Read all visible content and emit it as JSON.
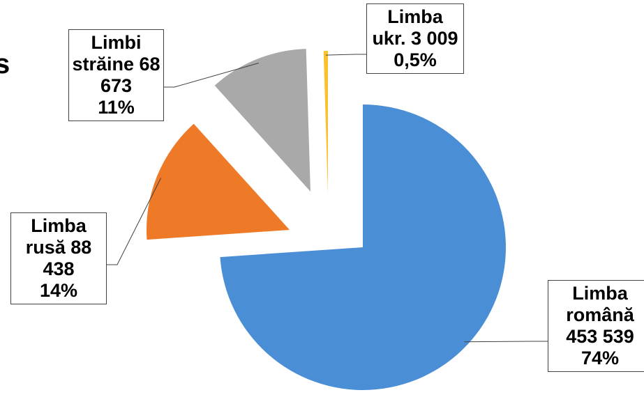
{
  "chart_data": {
    "type": "pie",
    "title": "s",
    "categories": [
      "Limba română",
      "Limba rusă",
      "Limbi străine",
      "Limba ukr."
    ],
    "values": [
      453539,
      88438,
      68673,
      3009
    ],
    "value_labels": [
      "453 539",
      "88 438",
      "68 673",
      "3 009"
    ],
    "percents": [
      74,
      14,
      11,
      0.5
    ],
    "percent_labels": [
      "74%",
      "14%",
      "11%",
      "0,5%"
    ],
    "colors": [
      "#4a8fd6",
      "#ee7a28",
      "#a9a9a9",
      "#fbc02d"
    ],
    "exploded": true
  }
}
